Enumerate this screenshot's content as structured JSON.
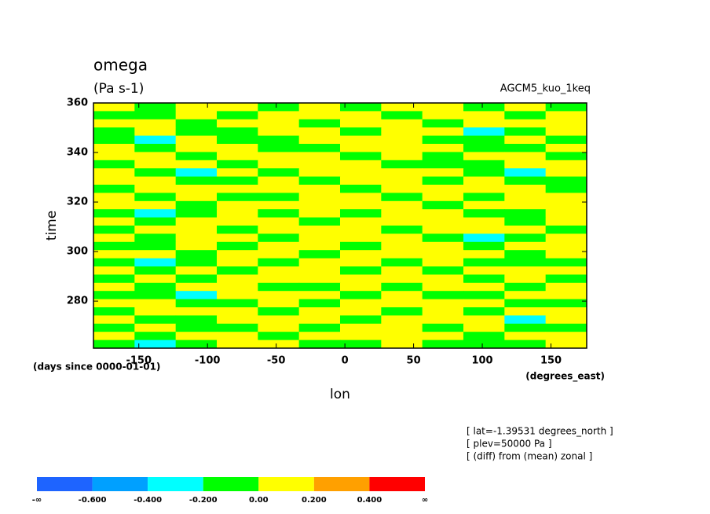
{
  "chart_data": {
    "type": "contour",
    "title": "omega",
    "subtitle": "(Pa s-1)",
    "annotation": "AGCM5_kuo_1keq",
    "ylabel": "time",
    "xlabel": "lon",
    "yunits": "(days since 0000-01-01)",
    "xunits": "(degrees_east)",
    "notes": [
      "[ lat=-1.39531 degrees_north ]",
      "[ plev=50000 Pa ]",
      "[ (diff) from (mean) zonal ]"
    ],
    "xlim": [
      -183,
      176
    ],
    "ylim": [
      261,
      360
    ],
    "xticks": [
      -150,
      -100,
      -50,
      0,
      50,
      100,
      150
    ],
    "yticks": [
      280,
      300,
      320,
      340,
      360
    ],
    "colors": [
      "#1e64ff",
      "#00a0ff",
      "#00ffff",
      "#00ff00",
      "#ffff00",
      "#ffa000",
      "#ff0000"
    ],
    "levels": [
      {
        "label": "-∞"
      },
      {
        "value": -0.6,
        "label": "-0.600"
      },
      {
        "value": -0.4,
        "label": "-0.400"
      },
      {
        "value": -0.2,
        "label": "-0.200"
      },
      {
        "value": 0,
        "label": "0.00"
      },
      {
        "value": 0.2,
        "label": "0.200"
      },
      {
        "value": 0.4,
        "label": "0.400"
      },
      {
        "label": "∞"
      }
    ],
    "z": [
      [
        0.1,
        -0.1,
        0.1,
        0.1,
        -0.1,
        0.1,
        -0.1,
        0.1,
        0.1,
        -0.1,
        0.1,
        -0.1
      ],
      [
        -0.1,
        -0.1,
        0.1,
        -0.1,
        0.1,
        0.1,
        0.1,
        -0.1,
        0.1,
        0.1,
        -0.1,
        0.1
      ],
      [
        0.1,
        0.1,
        -0.1,
        0.1,
        0.1,
        -0.1,
        0.1,
        0.1,
        -0.1,
        0.1,
        0.1,
        0.1
      ],
      [
        -0.1,
        0.1,
        -0.1,
        -0.1,
        0.1,
        0.1,
        -0.1,
        0.1,
        0.1,
        -0.3,
        -0.1,
        0.1
      ],
      [
        -0.1,
        -0.3,
        0.1,
        -0.1,
        -0.1,
        0.1,
        0.1,
        0.1,
        -0.1,
        -0.1,
        0.1,
        -0.1
      ],
      [
        0.1,
        -0.1,
        0.1,
        0.1,
        -0.1,
        -0.1,
        0.1,
        0.1,
        0.1,
        -0.1,
        -0.1,
        0.1
      ],
      [
        0.1,
        0.1,
        -0.1,
        0.1,
        0.1,
        0.1,
        -0.1,
        0.1,
        -0.1,
        0.1,
        0.1,
        -0.1
      ],
      [
        -0.1,
        0.1,
        0.1,
        -0.1,
        0.1,
        0.1,
        0.1,
        -0.1,
        -0.1,
        -0.1,
        0.1,
        0.1
      ],
      [
        0.1,
        -0.1,
        -0.3,
        0.1,
        -0.1,
        0.1,
        0.1,
        0.1,
        0.1,
        -0.1,
        -0.3,
        0.1
      ],
      [
        0.1,
        0.1,
        -0.1,
        -0.1,
        0.1,
        -0.1,
        0.1,
        0.1,
        -0.1,
        0.1,
        -0.1,
        -0.1
      ],
      [
        -0.1,
        0.1,
        0.1,
        0.1,
        0.1,
        0.1,
        -0.1,
        0.1,
        0.1,
        0.1,
        0.1,
        -0.1
      ],
      [
        0.1,
        -0.1,
        0.1,
        -0.1,
        -0.1,
        0.1,
        0.1,
        -0.1,
        0.1,
        -0.1,
        0.1,
        0.1
      ],
      [
        0.1,
        0.1,
        -0.1,
        0.1,
        0.1,
        0.1,
        0.1,
        0.1,
        -0.1,
        0.1,
        0.1,
        0.1
      ],
      [
        -0.1,
        -0.3,
        -0.1,
        0.1,
        -0.1,
        0.1,
        -0.1,
        0.1,
        0.1,
        -0.1,
        -0.1,
        0.1
      ],
      [
        0.1,
        -0.1,
        0.1,
        0.1,
        0.1,
        -0.1,
        0.1,
        0.1,
        0.1,
        0.1,
        -0.1,
        0.1
      ],
      [
        -0.1,
        0.1,
        0.1,
        -0.1,
        0.1,
        0.1,
        0.1,
        -0.1,
        0.1,
        0.1,
        0.1,
        -0.1
      ],
      [
        0.1,
        -0.1,
        0.1,
        0.1,
        -0.1,
        0.1,
        0.1,
        0.1,
        -0.1,
        -0.3,
        -0.1,
        0.1
      ],
      [
        -0.1,
        -0.1,
        0.1,
        -0.1,
        0.1,
        0.1,
        -0.1,
        0.1,
        0.1,
        -0.1,
        0.1,
        0.1
      ],
      [
        0.1,
        0.1,
        -0.1,
        0.1,
        0.1,
        -0.1,
        0.1,
        0.1,
        0.1,
        0.1,
        -0.1,
        0.1
      ],
      [
        -0.1,
        -0.3,
        -0.1,
        0.1,
        -0.1,
        0.1,
        0.1,
        -0.1,
        0.1,
        -0.1,
        -0.1,
        -0.1
      ],
      [
        0.1,
        -0.1,
        0.1,
        -0.1,
        0.1,
        0.1,
        -0.1,
        0.1,
        -0.1,
        0.1,
        0.1,
        0.1
      ],
      [
        -0.1,
        0.1,
        -0.1,
        0.1,
        0.1,
        0.1,
        0.1,
        0.1,
        0.1,
        -0.1,
        0.1,
        -0.1
      ],
      [
        0.1,
        -0.1,
        0.1,
        0.1,
        -0.1,
        -0.1,
        0.1,
        -0.1,
        0.1,
        0.1,
        -0.1,
        0.1
      ],
      [
        -0.1,
        -0.1,
        -0.3,
        0.1,
        0.1,
        0.1,
        -0.1,
        0.1,
        -0.1,
        -0.1,
        0.1,
        0.1
      ],
      [
        0.1,
        0.1,
        -0.1,
        -0.1,
        0.1,
        -0.1,
        0.1,
        0.1,
        0.1,
        0.1,
        -0.1,
        -0.1
      ],
      [
        -0.1,
        0.1,
        0.1,
        0.1,
        -0.1,
        0.1,
        0.1,
        -0.1,
        0.1,
        -0.1,
        0.1,
        0.1
      ],
      [
        0.1,
        -0.1,
        -0.1,
        0.1,
        0.1,
        0.1,
        -0.1,
        0.1,
        0.1,
        0.1,
        -0.3,
        0.1
      ],
      [
        -0.1,
        0.1,
        -0.1,
        -0.1,
        0.1,
        -0.1,
        0.1,
        0.1,
        -0.1,
        0.1,
        -0.1,
        -0.1
      ],
      [
        0.1,
        -0.1,
        0.1,
        0.1,
        -0.1,
        0.1,
        0.1,
        0.1,
        0.1,
        -0.1,
        0.1,
        0.1
      ],
      [
        -0.1,
        -0.3,
        -0.1,
        0.1,
        0.1,
        -0.1,
        -0.1,
        0.1,
        -0.1,
        -0.1,
        -0.1,
        0.1
      ]
    ]
  }
}
